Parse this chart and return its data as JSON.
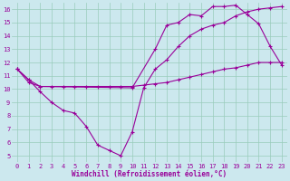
{
  "xlabel": "Windchill (Refroidissement éolien,°C)",
  "bg_color": "#cce8ee",
  "line_color": "#990099",
  "grid_color": "#99ccbb",
  "xlim": [
    -0.5,
    23.5
  ],
  "ylim": [
    4.5,
    16.5
  ],
  "xticks": [
    0,
    1,
    2,
    3,
    4,
    5,
    6,
    7,
    8,
    9,
    10,
    11,
    12,
    13,
    14,
    15,
    16,
    17,
    18,
    19,
    20,
    21,
    22,
    23
  ],
  "yticks": [
    5,
    6,
    7,
    8,
    9,
    10,
    11,
    12,
    13,
    14,
    15,
    16
  ],
  "series": [
    {
      "x": [
        0,
        1,
        2,
        10,
        12,
        13,
        14,
        15,
        16,
        17,
        18,
        19,
        20,
        21,
        22,
        23
      ],
      "y": [
        11.5,
        10.7,
        10.2,
        10.1,
        13.0,
        14.8,
        15.0,
        15.6,
        15.5,
        16.2,
        16.2,
        16.3,
        15.6,
        14.9,
        13.2,
        11.8
      ]
    },
    {
      "x": [
        0,
        1,
        2,
        3,
        4,
        5,
        6,
        7,
        8,
        9,
        10,
        11,
        12,
        13,
        14,
        15,
        16,
        17,
        18,
        19,
        20,
        21,
        22,
        23
      ],
      "y": [
        11.5,
        10.7,
        9.8,
        9.0,
        8.4,
        8.2,
        7.2,
        5.8,
        5.4,
        5.0,
        6.8,
        10.1,
        11.5,
        12.2,
        13.2,
        14.0,
        14.5,
        14.8,
        15.0,
        15.5,
        15.8,
        16.0,
        16.1,
        16.2
      ]
    },
    {
      "x": [
        0,
        1,
        2,
        3,
        4,
        5,
        6,
        7,
        8,
        9,
        10,
        11,
        12,
        13,
        14,
        15,
        16,
        17,
        18,
        19,
        20,
        21,
        22,
        23
      ],
      "y": [
        11.5,
        10.5,
        10.2,
        10.2,
        10.2,
        10.2,
        10.2,
        10.2,
        10.2,
        10.2,
        10.2,
        10.3,
        10.4,
        10.5,
        10.7,
        10.9,
        11.1,
        11.3,
        11.5,
        11.6,
        11.8,
        12.0,
        12.0,
        12.0
      ]
    }
  ],
  "marker": "+",
  "markersize": 3,
  "linewidth": 0.8,
  "xlabel_fontsize": 5.5,
  "tick_fontsize": 5.0
}
